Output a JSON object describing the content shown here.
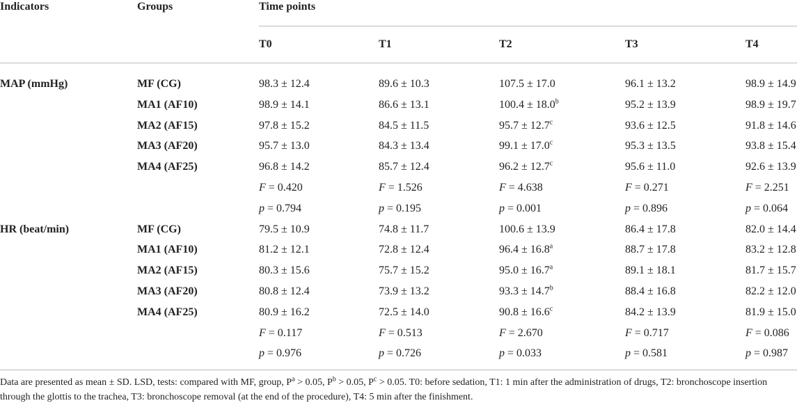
{
  "header": {
    "indicators": "Indicators",
    "groups": "Groups",
    "time_points": "Time points",
    "times": [
      "T0",
      "T1",
      "T2",
      "T3",
      "T4"
    ]
  },
  "sections": [
    {
      "indicator": "MAP (mmHg)",
      "rows": [
        {
          "group": "MF (CG)",
          "cells": [
            {
              "text": "98.3 ± 12.4"
            },
            {
              "text": "89.6 ± 10.3"
            },
            {
              "text": "107.5 ± 17.0"
            },
            {
              "text": "96.1 ± 13.2"
            },
            {
              "text": "98.9 ± 14.9"
            }
          ]
        },
        {
          "group": "MA1 (AF10)",
          "cells": [
            {
              "text": "98.9 ± 14.1"
            },
            {
              "text": "86.6 ± 13.1"
            },
            {
              "text": "100.4 ± 18.0",
              "sup": "b"
            },
            {
              "text": "95.2 ± 13.9"
            },
            {
              "text": "98.9 ± 19.7"
            }
          ]
        },
        {
          "group": "MA2 (AF15)",
          "cells": [
            {
              "text": "97.8 ± 15.2"
            },
            {
              "text": "84.5 ± 11.5"
            },
            {
              "text": "95.7 ± 12.7",
              "sup": "c"
            },
            {
              "text": "93.6 ± 12.5"
            },
            {
              "text": "91.8 ± 14.6"
            }
          ]
        },
        {
          "group": "MA3 (AF20)",
          "cells": [
            {
              "text": "95.7 ± 13.0"
            },
            {
              "text": "84.3 ± 13.4"
            },
            {
              "text": "99.1 ± 17.0",
              "sup": "c"
            },
            {
              "text": "95.3 ± 13.5"
            },
            {
              "text": "93.8 ± 15.4"
            }
          ]
        },
        {
          "group": "MA4 (AF25)",
          "cells": [
            {
              "text": "96.8 ± 14.2"
            },
            {
              "text": "85.7 ± 12.4"
            },
            {
              "text": "96.2 ± 12.7",
              "sup": "c"
            },
            {
              "text": "95.6 ± 11.0"
            },
            {
              "text": "92.6 ± 13.9"
            }
          ]
        },
        {
          "cells": [
            {
              "stat": "F",
              "text": " = 0.420"
            },
            {
              "stat": "F",
              "text": " = 1.526"
            },
            {
              "stat": "F",
              "text": " = 4.638"
            },
            {
              "stat": "F",
              "text": " = 0.271"
            },
            {
              "stat": "F",
              "text": " = 2.251"
            }
          ]
        },
        {
          "cells": [
            {
              "stat": "p",
              "text": " = 0.794"
            },
            {
              "stat": "p",
              "text": " = 0.195"
            },
            {
              "stat": "p",
              "text": " = 0.001"
            },
            {
              "stat": "p",
              "text": " = 0.896"
            },
            {
              "stat": "p",
              "text": " = 0.064"
            }
          ]
        }
      ]
    },
    {
      "indicator": "HR (beat/min)",
      "rows": [
        {
          "group": "MF (CG)",
          "cells": [
            {
              "text": "79.5 ± 10.9"
            },
            {
              "text": "74.8 ± 11.7"
            },
            {
              "text": "100.6 ± 13.9"
            },
            {
              "text": "86.4 ± 17.8"
            },
            {
              "text": "82.0 ± 14.4"
            }
          ]
        },
        {
          "group": "MA1 (AF10)",
          "cells": [
            {
              "text": "81.2 ± 12.1"
            },
            {
              "text": "72.8 ± 12.4"
            },
            {
              "text": "96.4 ± 16.8",
              "sup": "a"
            },
            {
              "text": "88.7 ± 17.8"
            },
            {
              "text": "83.2 ± 12.8"
            }
          ]
        },
        {
          "group": "MA2 (AF15)",
          "cells": [
            {
              "text": "80.3 ± 15.6"
            },
            {
              "text": "75.7 ± 15.2"
            },
            {
              "text": "95.0 ± 16.7",
              "sup": "a"
            },
            {
              "text": "89.1 ± 18.1"
            },
            {
              "text": "81.7 ± 15.7"
            }
          ]
        },
        {
          "group": "MA3 (AF20)",
          "cells": [
            {
              "text": "80.8 ± 12.4"
            },
            {
              "text": "73.9 ± 13.2"
            },
            {
              "text": "93.3 ± 14.7",
              "sup": "b"
            },
            {
              "text": "88.4 ± 16.8"
            },
            {
              "text": "82.2 ± 12.0"
            }
          ]
        },
        {
          "group": "MA4 (AF25)",
          "cells": [
            {
              "text": "80.9 ± 16.2"
            },
            {
              "text": "72.5 ± 14.0"
            },
            {
              "text": "90.8 ± 16.6",
              "sup": "c"
            },
            {
              "text": "84.2 ± 13.9"
            },
            {
              "text": "81.9 ± 15.0"
            }
          ]
        },
        {
          "cells": [
            {
              "stat": "F",
              "text": " = 0.117"
            },
            {
              "stat": "F",
              "text": " = 0.513"
            },
            {
              "stat": "F",
              "text": " = 2.670"
            },
            {
              "stat": "F",
              "text": " = 0.717"
            },
            {
              "stat": "F",
              "text": " = 0.086"
            }
          ]
        },
        {
          "cells": [
            {
              "stat": "p",
              "text": " = 0.976"
            },
            {
              "stat": "p",
              "text": " = 0.726"
            },
            {
              "stat": "p",
              "text": " = 0.033"
            },
            {
              "stat": "p",
              "text": " = 0.581"
            },
            {
              "stat": "p",
              "text": " = 0.987"
            }
          ]
        }
      ]
    }
  ],
  "footnote": [
    {
      "text": "Data are presented as mean ± SD. LSD, tests: compared with MF, group, P"
    },
    {
      "sup": "a"
    },
    {
      "text": " > 0.05, P"
    },
    {
      "sup": "b"
    },
    {
      "text": " > 0.05, P"
    },
    {
      "sup": "c"
    },
    {
      "text": " > 0.05. T0: before sedation, T1: 1 min after the administration of drugs, T2: bronchoscope insertion through the glottis to the trachea, T3: bronchoscope removal (at the end of the procedure), T4: 5 min after the finishment."
    }
  ]
}
